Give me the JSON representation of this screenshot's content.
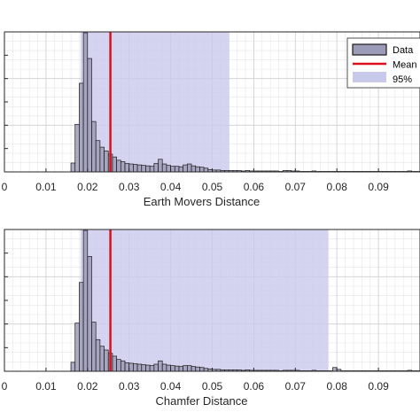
{
  "chart_data": [
    {
      "type": "bar",
      "xlabel": "Earth Movers Distance",
      "xlim": [
        0,
        0.1
      ],
      "xticks": [
        0,
        0.01,
        0.02,
        0.03,
        0.04,
        0.05,
        0.06,
        0.07,
        0.08,
        0.09
      ],
      "xtick_labels": [
        "0",
        "0.01",
        "0.02",
        "0.03",
        "0.04",
        "0.05",
        "0.06",
        "0.07",
        "0.08",
        "0.09"
      ],
      "bin_width": 0.001,
      "bin_starts": [
        0.016,
        0.017,
        0.018,
        0.019,
        0.02,
        0.021,
        0.022,
        0.023,
        0.024,
        0.025,
        0.026,
        0.027,
        0.028,
        0.029,
        0.03,
        0.031,
        0.032,
        0.033,
        0.034,
        0.035,
        0.036,
        0.037,
        0.038,
        0.039,
        0.04,
        0.041,
        0.042,
        0.043,
        0.044,
        0.045,
        0.046,
        0.047,
        0.048,
        0.049,
        0.05,
        0.051,
        0.052,
        0.053,
        0.054,
        0.055,
        0.056,
        0.057,
        0.058,
        0.059,
        0.06,
        0.061,
        0.062,
        0.063,
        0.064,
        0.065,
        0.066,
        0.067,
        0.068,
        0.069,
        0.07,
        0.071,
        0.072,
        0.073,
        0.074,
        0.075,
        0.076,
        0.077,
        0.078,
        0.079,
        0.08,
        0.081,
        0.082,
        0.083,
        0.084,
        0.085,
        0.086,
        0.087,
        0.088,
        0.089,
        0.09,
        0.091,
        0.092,
        0.093,
        0.094,
        0.095,
        0.096,
        0.097,
        0.098,
        0.099
      ],
      "values": [
        0.019,
        0.102,
        0.19,
        0.298,
        0.243,
        0.108,
        0.067,
        0.053,
        0.045,
        0.038,
        0.032,
        0.025,
        0.022,
        0.018,
        0.017,
        0.016,
        0.015,
        0.014,
        0.013,
        0.012,
        0.018,
        0.027,
        0.017,
        0.014,
        0.012,
        0.012,
        0.011,
        0.015,
        0.017,
        0.013,
        0.011,
        0.01,
        0.008,
        0.005,
        0.004,
        0.004,
        0.003,
        0.003,
        0.003,
        0.003,
        0.003,
        0.002,
        0.003,
        0.002,
        0.002,
        0.002,
        0.002,
        0.002,
        0.002,
        0.002,
        0.001,
        0.003,
        0.003,
        0.002,
        0.002,
        0.001,
        0.001,
        0.001,
        0.002,
        0.001,
        0.001,
        0.001,
        0.001,
        0.001,
        0.001,
        0.001,
        0.001,
        0.001,
        0.001,
        0.001,
        0.001,
        0.001,
        0.001,
        0.001,
        0.001,
        0.001,
        0.001,
        0.001,
        0.001,
        0.001,
        0.001,
        0.002,
        0.001,
        0.001
      ],
      "ylim": [
        0,
        0.3
      ],
      "mean": 0.0255,
      "ci95": [
        0.0183,
        0.0541
      ],
      "grid": true,
      "legend_position": "top-right",
      "legend": [
        "Data",
        "Mean",
        "95%"
      ],
      "colors": {
        "bar": "#9c9cb8",
        "mean": "#d9121f",
        "ci": "#c9c9ec"
      }
    },
    {
      "type": "bar",
      "xlabel": "Chamfer Distance",
      "xlim": [
        0,
        0.1
      ],
      "xticks": [
        0,
        0.01,
        0.02,
        0.03,
        0.04,
        0.05,
        0.06,
        0.07,
        0.08,
        0.09
      ],
      "xtick_labels": [
        "0",
        "0.01",
        "0.02",
        "0.03",
        "0.04",
        "0.05",
        "0.06",
        "0.07",
        "0.08",
        "0.09"
      ],
      "bin_width": 0.001,
      "bin_starts": [
        0.016,
        0.017,
        0.018,
        0.019,
        0.02,
        0.021,
        0.022,
        0.023,
        0.024,
        0.025,
        0.026,
        0.027,
        0.028,
        0.029,
        0.03,
        0.031,
        0.032,
        0.033,
        0.034,
        0.035,
        0.036,
        0.037,
        0.038,
        0.039,
        0.04,
        0.041,
        0.042,
        0.043,
        0.044,
        0.045,
        0.046,
        0.047,
        0.048,
        0.049,
        0.05,
        0.051,
        0.052,
        0.053,
        0.054,
        0.055,
        0.056,
        0.057,
        0.058,
        0.059,
        0.06,
        0.061,
        0.062,
        0.063,
        0.064,
        0.065,
        0.066,
        0.067,
        0.068,
        0.069,
        0.07,
        0.071,
        0.072,
        0.073,
        0.074,
        0.075,
        0.076,
        0.077,
        0.078,
        0.079,
        0.08,
        0.081,
        0.082,
        0.083,
        0.084,
        0.085,
        0.086,
        0.087,
        0.088,
        0.089,
        0.09,
        0.091,
        0.092,
        0.093,
        0.094,
        0.095,
        0.096,
        0.097,
        0.098,
        0.099
      ],
      "values": [
        0.019,
        0.102,
        0.188,
        0.298,
        0.243,
        0.104,
        0.067,
        0.053,
        0.045,
        0.038,
        0.032,
        0.025,
        0.022,
        0.018,
        0.017,
        0.016,
        0.015,
        0.014,
        0.013,
        0.012,
        0.015,
        0.022,
        0.015,
        0.013,
        0.012,
        0.011,
        0.01,
        0.012,
        0.012,
        0.01,
        0.009,
        0.008,
        0.006,
        0.005,
        0.004,
        0.004,
        0.003,
        0.003,
        0.003,
        0.003,
        0.003,
        0.002,
        0.003,
        0.002,
        0.002,
        0.002,
        0.002,
        0.002,
        0.002,
        0.002,
        0.001,
        0.002,
        0.002,
        0.002,
        0.002,
        0.001,
        0.001,
        0.001,
        0.002,
        0.001,
        0.001,
        0.001,
        0.001,
        0.008,
        0.004,
        0.001,
        0.001,
        0.001,
        0.001,
        0.001,
        0.001,
        0.001,
        0.001,
        0.001,
        0.001,
        0.001,
        0.001,
        0.001,
        0.001,
        0.001,
        0.001,
        0.002,
        0.001,
        0.001
      ],
      "ylim": [
        0,
        0.3
      ],
      "mean": 0.0255,
      "ci95": [
        0.0183,
        0.0779
      ],
      "grid": true,
      "colors": {
        "bar": "#9c9cb8",
        "mean": "#d9121f",
        "ci": "#c9c9ec"
      }
    }
  ]
}
